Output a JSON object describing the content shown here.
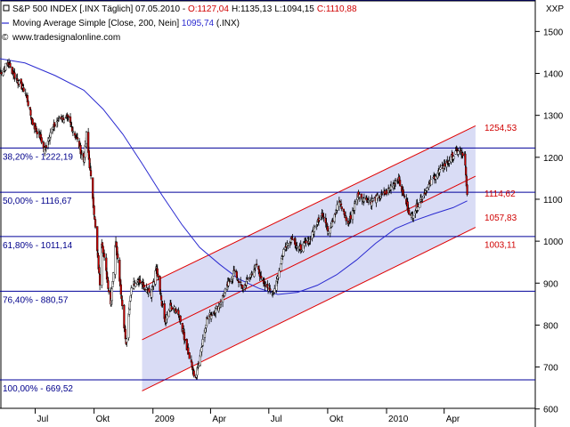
{
  "header": {
    "instrument_line_prefix": "S&P 500 INDEX [.INX  Täglich] 07.05.2010 - ",
    "o": "O:1127,04",
    "h": "H:1135,13",
    "l": "L:1094,15",
    "c": "C:1110,88",
    "ma_line_prefix": "Moving Average Simple [Close, 200, Nein] ",
    "ma_value": "1095,74",
    "ma_suffix": " (.INX)",
    "source": "www.tradesignalonline.com",
    "corner_label": "XXP"
  },
  "colors": {
    "candle_up": "#ffffff",
    "candle_down": "#cc0000",
    "wick": "#000000",
    "ma_line": "#2a2ad0",
    "fib_line": "#00009a",
    "channel_line": "#e00000",
    "channel_fill": "#d9dcf5",
    "price_label_red": "#d00000",
    "fib_label": "#00008b",
    "axis_text": "#000000"
  },
  "chart_data": {
    "type": "candlestick",
    "title": "S&P 500 INDEX [.INX  Täglich] 07.05.2010",
    "ylim": [
      557,
      1575
    ],
    "y_ticks": [
      600,
      700,
      800,
      900,
      1000,
      1100,
      1200,
      1300,
      1400,
      1500
    ],
    "x_tick_labels": [
      "Jul",
      "Okt",
      "2009",
      "Apr",
      "Jul",
      "Okt",
      "2010",
      "Apr"
    ],
    "x_tick_dates": [
      "2008-07-01",
      "2008-10-01",
      "2009-01-01",
      "2009-04-01",
      "2009-07-01",
      "2009-10-01",
      "2010-01-01",
      "2010-04-01"
    ],
    "x_start_date": "2008-05-07",
    "x_end_date": "2010-07-12",
    "fib_levels": [
      {
        "label": "38,20% - 1222,19",
        "value": 1222.19
      },
      {
        "label": "50,00% - 1116,67",
        "value": 1116.67
      },
      {
        "label": "61,80% - 1011,14",
        "value": 1011.14
      },
      {
        "label": "76,40% - 880,57",
        "value": 880.57
      },
      {
        "label": "100,00% - 669,52",
        "value": 669.52
      }
    ],
    "price_tags": [
      {
        "label": "1254,53",
        "value": 1254.53
      },
      {
        "label": "1114,62",
        "value": 1114.62
      },
      {
        "label": "1057,83",
        "value": 1057.83
      },
      {
        "label": "1003,11",
        "value": 1003.11
      }
    ],
    "top_line": 1575,
    "channel": {
      "start_date": "2008-12-15",
      "end_date": "2010-05-20",
      "upper": [
        890,
        1275
      ],
      "middle": [
        765,
        1155
      ],
      "lower": [
        643,
        1033
      ]
    },
    "series": [
      {
        "name": "S&P 500 INDEX",
        "kind": "close",
        "points": [
          [
            "2008-05-07",
            1400
          ],
          [
            "2008-05-19",
            1425
          ],
          [
            "2008-06-02",
            1385
          ],
          [
            "2008-06-16",
            1355
          ],
          [
            "2008-06-27",
            1280
          ],
          [
            "2008-07-10",
            1245
          ],
          [
            "2008-07-15",
            1215
          ],
          [
            "2008-07-25",
            1260
          ],
          [
            "2008-08-08",
            1295
          ],
          [
            "2008-08-22",
            1290
          ],
          [
            "2008-09-05",
            1240
          ],
          [
            "2008-09-15",
            1190
          ],
          [
            "2008-09-19",
            1255
          ],
          [
            "2008-09-29",
            1105
          ],
          [
            "2008-10-10",
            900
          ],
          [
            "2008-10-13",
            1000
          ],
          [
            "2008-10-27",
            850
          ],
          [
            "2008-11-04",
            1005
          ],
          [
            "2008-11-20",
            752
          ],
          [
            "2008-11-28",
            890
          ],
          [
            "2008-12-08",
            910
          ],
          [
            "2008-12-29",
            870
          ],
          [
            "2009-01-06",
            935
          ],
          [
            "2009-01-20",
            805
          ],
          [
            "2009-01-28",
            845
          ],
          [
            "2009-02-10",
            830
          ],
          [
            "2009-02-23",
            745
          ],
          [
            "2009-03-06",
            683
          ],
          [
            "2009-03-09",
            676
          ],
          [
            "2009-03-26",
            815
          ],
          [
            "2009-04-14",
            845
          ],
          [
            "2009-05-08",
            930
          ],
          [
            "2009-05-21",
            885
          ],
          [
            "2009-06-12",
            945
          ],
          [
            "2009-06-23",
            895
          ],
          [
            "2009-07-10",
            880
          ],
          [
            "2009-07-24",
            980
          ],
          [
            "2009-08-07",
            1010
          ],
          [
            "2009-08-17",
            980
          ],
          [
            "2009-09-01",
            1000
          ],
          [
            "2009-09-22",
            1070
          ],
          [
            "2009-10-02",
            1025
          ],
          [
            "2009-10-19",
            1095
          ],
          [
            "2009-11-02",
            1040
          ],
          [
            "2009-11-17",
            1110
          ],
          [
            "2009-12-08",
            1095
          ],
          [
            "2009-12-31",
            1115
          ],
          [
            "2010-01-19",
            1150
          ],
          [
            "2010-02-08",
            1057
          ],
          [
            "2010-02-25",
            1105
          ],
          [
            "2010-03-15",
            1150
          ],
          [
            "2010-04-01",
            1180
          ],
          [
            "2010-04-23",
            1217
          ],
          [
            "2010-05-03",
            1202
          ],
          [
            "2010-05-06",
            1128
          ],
          [
            "2010-05-07",
            1111
          ]
        ]
      },
      {
        "name": "Moving Average Simple [Close, 200, Nein]",
        "kind": "line",
        "points": [
          [
            "2008-05-07",
            1435
          ],
          [
            "2008-06-15",
            1425
          ],
          [
            "2008-08-01",
            1395
          ],
          [
            "2008-09-15",
            1360
          ],
          [
            "2008-10-15",
            1315
          ],
          [
            "2008-11-15",
            1255
          ],
          [
            "2008-12-15",
            1185
          ],
          [
            "2009-01-15",
            1110
          ],
          [
            "2009-02-15",
            1040
          ],
          [
            "2009-03-15",
            985
          ],
          [
            "2009-04-15",
            945
          ],
          [
            "2009-05-15",
            910
          ],
          [
            "2009-06-15",
            888
          ],
          [
            "2009-07-15",
            873
          ],
          [
            "2009-08-15",
            878
          ],
          [
            "2009-09-15",
            895
          ],
          [
            "2009-10-15",
            920
          ],
          [
            "2009-11-15",
            955
          ],
          [
            "2009-12-15",
            995
          ],
          [
            "2010-01-15",
            1030
          ],
          [
            "2010-02-15",
            1050
          ],
          [
            "2010-03-15",
            1065
          ],
          [
            "2010-04-15",
            1080
          ],
          [
            "2010-05-07",
            1096
          ]
        ]
      }
    ]
  }
}
